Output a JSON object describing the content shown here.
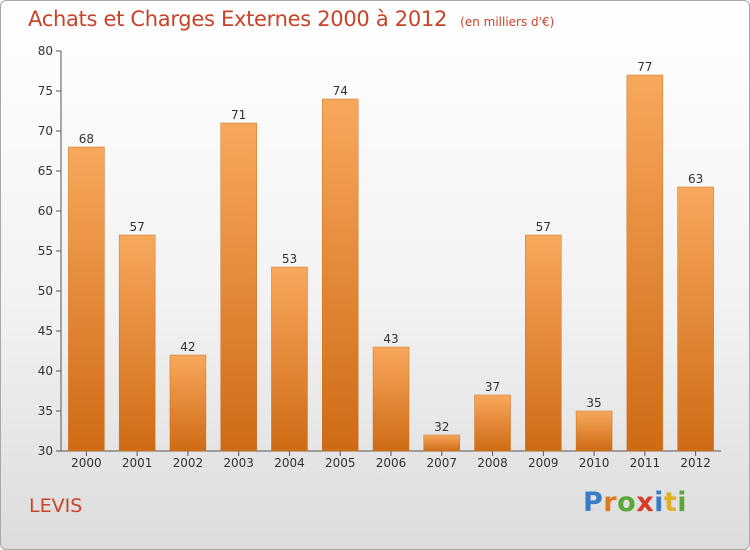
{
  "chart_data": {
    "type": "bar",
    "title": "Achats et Charges Externes 2000 à 2012",
    "units": "(en milliers d'€)",
    "categories": [
      "2000",
      "2001",
      "2002",
      "2003",
      "2004",
      "2005",
      "2006",
      "2007",
      "2008",
      "2009",
      "2010",
      "2011",
      "2012"
    ],
    "values": [
      68,
      57,
      42,
      71,
      53,
      74,
      43,
      32,
      37,
      57,
      35,
      77,
      63
    ],
    "ylim": [
      30,
      80
    ],
    "yticks": [
      30,
      35,
      40,
      45,
      50,
      55,
      60,
      65,
      70,
      75,
      80
    ],
    "grid": false,
    "bar_color": "#f0912f",
    "data_labels": true
  },
  "commune": "LEVIS",
  "brand": "Proxiti",
  "colors": {
    "title": "#c8432a",
    "bar_top": "#f8a85c",
    "bar_bottom": "#cf6a14"
  }
}
